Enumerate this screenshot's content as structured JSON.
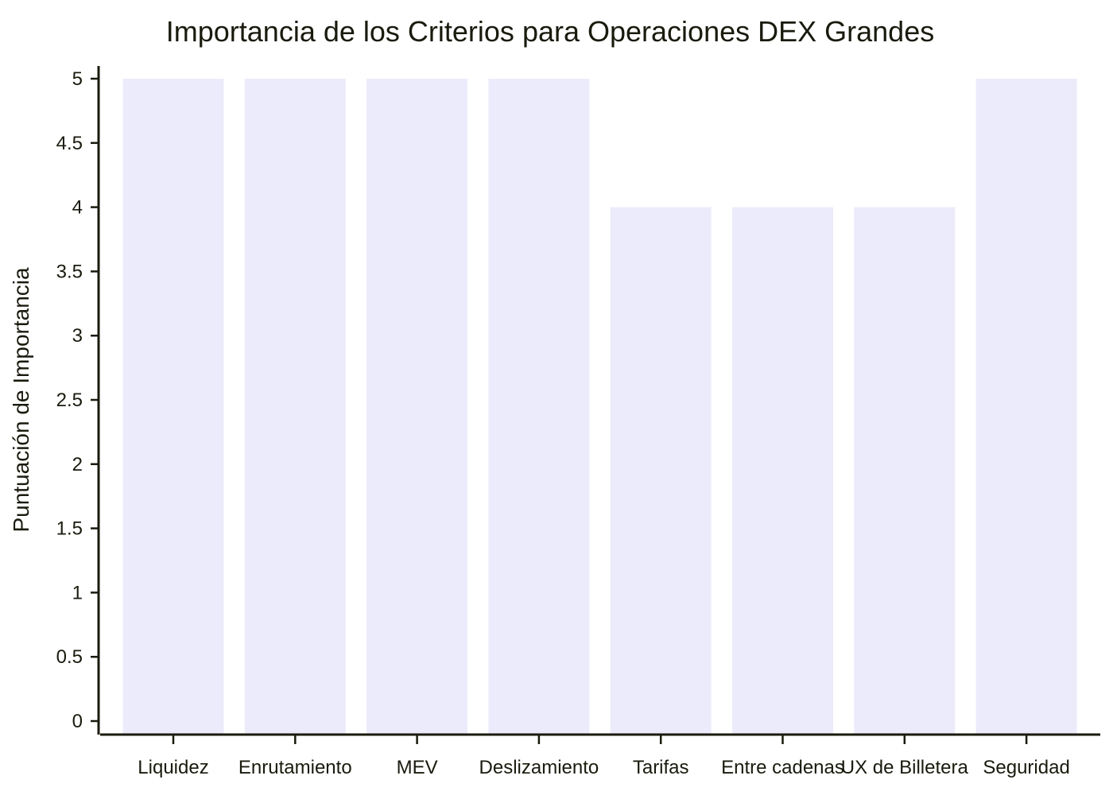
{
  "chart_data": {
    "type": "bar",
    "title": "Importancia de los Criterios para Operaciones DEX Grandes",
    "xlabel": "",
    "ylabel": "Puntuación de Importancia",
    "categories": [
      "Liquidez",
      "Enrutamiento",
      "MEV",
      "Deslizamiento",
      "Tarifas",
      "Entre cadenas",
      "UX de Billetera",
      "Seguridad"
    ],
    "values": [
      5,
      5,
      5,
      5,
      4,
      4,
      4,
      5
    ],
    "ylim": [
      0,
      5
    ],
    "yticks": [
      "0",
      "0.5",
      "1",
      "1.5",
      "2",
      "2.5",
      "3",
      "3.5",
      "4",
      "4.5",
      "5"
    ],
    "grid": false,
    "legend": "none",
    "colors": {
      "bar": "#ebebfb",
      "axis": "#1a1a0e",
      "text": "#1a1a0e",
      "background": "#ffffff"
    }
  }
}
